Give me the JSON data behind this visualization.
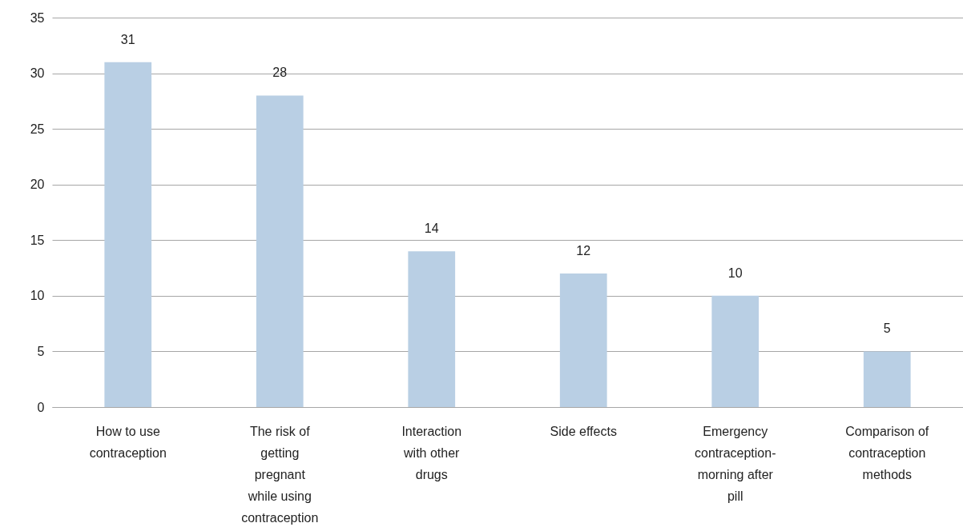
{
  "chart_data": {
    "type": "bar",
    "categories": [
      "How to use contraception",
      "The risk of getting pregnant while using contraception",
      "Interaction with other drugs",
      "Side effects",
      "Emergency contraception-morning after pill",
      "Comparison of contraception methods"
    ],
    "values": [
      31,
      28,
      14,
      12,
      10,
      5
    ],
    "color": "#b9cfe4",
    "ylim": [
      0,
      35
    ],
    "yticks": [
      0,
      5,
      10,
      15,
      20,
      25,
      30,
      35
    ],
    "grid": "y",
    "data_labels": true
  }
}
